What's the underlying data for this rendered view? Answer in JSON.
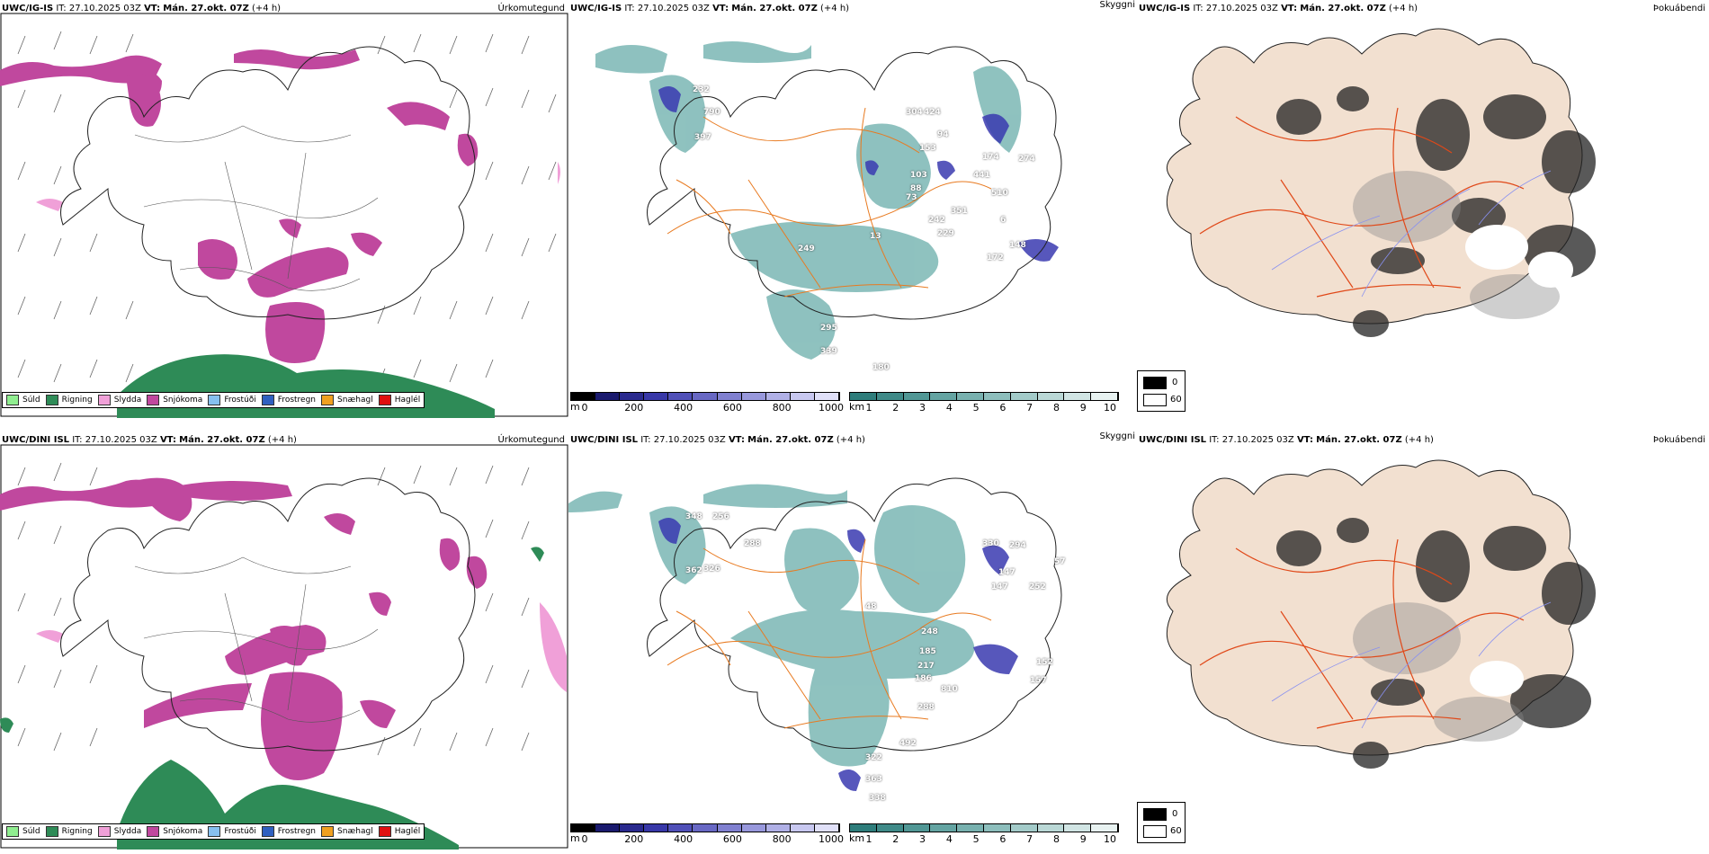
{
  "rows": [
    {
      "model": "UWC/IG-IS",
      "it_label": "IT:",
      "it_value": "27.10.2025 03Z",
      "vt_label": "VT:",
      "vt_value": "Mán. 27.okt. 07Z",
      "lead": "(+4 h)",
      "right_title_1": "Úrkomutegund",
      "right_title_2": "Skyggni",
      "right_title_3": "Þokuábendi",
      "cloud_labels": [
        "232",
        "790",
        "397",
        "304",
        "424",
        "94",
        "153",
        "174",
        "274",
        "103",
        "88",
        "73",
        "441",
        "510",
        "6",
        "351",
        "242",
        "229",
        "148",
        "172",
        "249",
        "13",
        "295",
        "339",
        "180"
      ]
    },
    {
      "model": "UWC/DINI ISL",
      "it_label": "IT:",
      "it_value": "27.10.2025 03Z",
      "vt_label": "VT:",
      "vt_value": "Mán. 27.okt. 07Z",
      "lead": "(+4 h)",
      "right_title_1": "Úrkomutegund",
      "right_title_2": "Skyggni",
      "right_title_3": "Þokuábendi",
      "cloud_labels": [
        "348",
        "256",
        "288",
        "362",
        "326",
        "330",
        "294",
        "57",
        "147",
        "252",
        "147",
        "48",
        "185",
        "248",
        "152",
        "217",
        "186",
        "810",
        "157",
        "288",
        "492",
        "322",
        "363",
        "338"
      ]
    }
  ],
  "precip_legend": [
    {
      "label": "Súld",
      "color": "#90ee90"
    },
    {
      "label": "Rigning",
      "color": "#2e8b57"
    },
    {
      "label": "Slydda",
      "color": "#f0a0d8"
    },
    {
      "label": "Snjókoma",
      "color": "#c0489e"
    },
    {
      "label": "Frostúði",
      "color": "#87c0f0"
    },
    {
      "label": "Frostregn",
      "color": "#3060c0"
    },
    {
      "label": "Snæhagl",
      "color": "#f0a020"
    },
    {
      "label": "Haglél",
      "color": "#e01010"
    }
  ],
  "cloud_base_bar": {
    "unit": "m",
    "ticks": [
      "0",
      "200",
      "400",
      "600",
      "800",
      "1000"
    ],
    "colors": [
      "#000000",
      "#1a1a6e",
      "#2a2a8e",
      "#3838a8",
      "#5050b8",
      "#6868c4",
      "#8080d0",
      "#9898dc",
      "#b0b0e6",
      "#c8c8f0",
      "#e0e0f8"
    ]
  },
  "visibility_bar": {
    "unit": "km",
    "ticks": [
      "1",
      "2",
      "3",
      "4",
      "5",
      "6",
      "7",
      "8",
      "9",
      "10"
    ],
    "colors": [
      "#2e7d7b",
      "#3f8a88",
      "#519795",
      "#64a4a2",
      "#78b1af",
      "#8dbebc",
      "#a3cbc9",
      "#bad8d6",
      "#d1e5e4",
      "#e8f2f1"
    ]
  },
  "fog_legend": {
    "low": "0",
    "high": "60"
  },
  "colors": {
    "snow": "#c0489e",
    "rain": "#2e8b57",
    "sleet": "#f0a0d8",
    "teal": "#5fa8a4",
    "cloud": "#3a3ab0",
    "road": "#e87a20",
    "land": "#f2e0d0"
  }
}
